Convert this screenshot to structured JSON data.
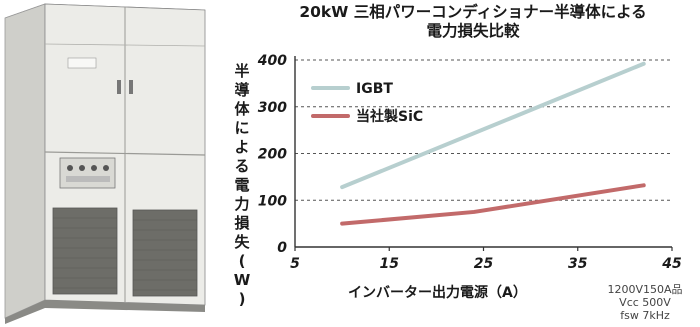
{
  "chart_data": {
    "type": "line",
    "title_line1": "20kW 三相パワーコンディショナー半導体による",
    "title_line2": "電力損失比較",
    "ylabel": "半導体による電力損失（W）",
    "xlabel": "インバーター出力電源（A）",
    "xlim": [
      5,
      45
    ],
    "ylim": [
      0,
      400
    ],
    "x_ticks": [
      "5",
      "15",
      "25",
      "35",
      "45"
    ],
    "y_ticks": [
      "0",
      "100",
      "200",
      "300",
      "400"
    ],
    "grid": "horizontal-dashed",
    "legend_position": "top-left",
    "series": [
      {
        "name": "IGBT",
        "color": "#b7cfcf",
        "x": [
          10,
          42
        ],
        "y": [
          128,
          392
        ]
      },
      {
        "name": "当社製SiC",
        "color": "#c26a6a",
        "x": [
          10,
          24,
          42
        ],
        "y": [
          50,
          75,
          132
        ]
      }
    ],
    "notes": [
      "1200V150A品",
      "Vcc 500V",
      "fsw 7kHz"
    ]
  },
  "colors": {
    "igbt": "#b7cfcf",
    "sic": "#c26a6a"
  }
}
